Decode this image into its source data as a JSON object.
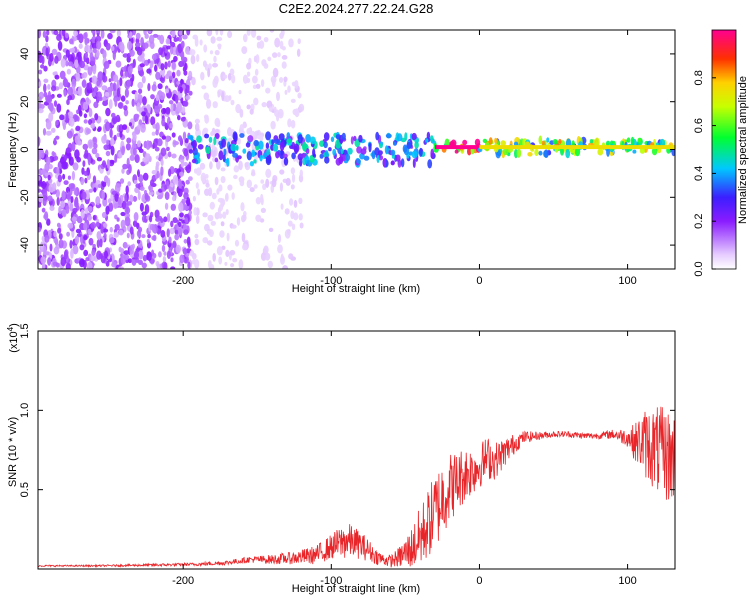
{
  "title": "C2E2.2024.277.22.24.G28",
  "colors": {
    "snr_line": "#e8262a",
    "axis": "#000000",
    "background": "#ffffff"
  },
  "chart_data": [
    {
      "type": "heatmap",
      "title": "C2E2.2024.277.22.24.G28",
      "xlabel": "Height of straight line (km)",
      "ylabel": "Frequency (Hz)",
      "xlim": [
        -298,
        132
      ],
      "ylim": [
        -50,
        50
      ],
      "x_ticks": [
        -200,
        -100,
        0,
        100
      ],
      "x_tick_labels": [
        "-200",
        "-100",
        "0",
        "100"
      ],
      "y_ticks": [
        -40,
        -20,
        0,
        20,
        40
      ],
      "y_tick_labels": [
        "-40",
        "-20",
        "0",
        "20",
        "40"
      ],
      "colorbar": {
        "label": "Normalized spectral amplitude",
        "range": [
          0,
          1
        ],
        "ticks": [
          0.0,
          0.2,
          0.4,
          0.6,
          0.8
        ],
        "tick_labels": [
          "0.0",
          "0.2",
          "0.4",
          "0.6",
          "0.8"
        ],
        "colormap": "rainbow (light violet → violet → blue → cyan → green → yellow → red)"
      },
      "features": [
        {
          "x_range": [
            -298,
            -195
          ],
          "freq_range": [
            -50,
            50
          ],
          "amplitude": 0.15,
          "description": "scattered violet noise over full band"
        },
        {
          "x_range": [
            -195,
            -120
          ],
          "freq_range": [
            -50,
            50
          ],
          "amplitude": 0.05,
          "description": "faint sparse noise"
        },
        {
          "x_range": [
            -195,
            -30
          ],
          "freq_range": [
            -6,
            6
          ],
          "amplitude": 0.35,
          "description": "broad signal band near 0 Hz"
        },
        {
          "x_range": [
            -30,
            0
          ],
          "freq_range": [
            -1,
            3
          ],
          "amplitude": 0.9,
          "description": "narrow strong line near 0 Hz"
        },
        {
          "x_range": [
            0,
            132
          ],
          "freq_range": [
            -2,
            4
          ],
          "amplitude": 0.6,
          "description": "strong narrow line at about 1 Hz"
        }
      ]
    },
    {
      "type": "line",
      "xlabel": "Height of straight line (km)",
      "ylabel": "SNR (10 * v/v)",
      "y_multiplier_label": "(x10",
      "y_multiplier_exponent": "4",
      "y_multiplier_suffix": ")",
      "xlim": [
        -298,
        132
      ],
      "ylim": [
        0,
        1.5
      ],
      "x_ticks": [
        -200,
        -100,
        0,
        100
      ],
      "x_tick_labels": [
        "-200",
        "-100",
        "0",
        "100"
      ],
      "y_ticks": [
        0.5,
        1.0,
        1.5
      ],
      "y_tick_labels": [
        "0.5",
        "1.0",
        "1.5"
      ],
      "series": [
        {
          "x": [
            -298,
            -260,
            -220,
            -190,
            -170,
            -155,
            -140,
            -125,
            -110,
            -100,
            -95,
            -90,
            -85,
            -80,
            -75,
            -70,
            -65,
            -60,
            -55,
            -50,
            -45,
            -40,
            -35,
            -30,
            -25,
            -20,
            -15,
            -10,
            -5,
            0,
            5,
            10,
            15,
            20,
            25,
            30,
            40,
            50,
            60,
            70,
            80,
            90,
            100,
            105,
            110,
            115,
            120,
            125,
            130,
            132
          ],
          "y": [
            0.02,
            0.02,
            0.025,
            0.03,
            0.04,
            0.06,
            0.06,
            0.07,
            0.09,
            0.14,
            0.16,
            0.18,
            0.17,
            0.15,
            0.12,
            0.08,
            0.06,
            0.05,
            0.07,
            0.1,
            0.14,
            0.2,
            0.28,
            0.36,
            0.45,
            0.52,
            0.55,
            0.6,
            0.62,
            0.65,
            0.7,
            0.68,
            0.72,
            0.76,
            0.8,
            0.83,
            0.84,
            0.85,
            0.85,
            0.84,
            0.84,
            0.85,
            0.83,
            0.8,
            0.8,
            0.78,
            0.75,
            0.72,
            0.7,
            0.7
          ],
          "noise": [
            0.005,
            0.005,
            0.008,
            0.01,
            0.015,
            0.02,
            0.03,
            0.04,
            0.06,
            0.08,
            0.1,
            0.12,
            0.1,
            0.09,
            0.07,
            0.05,
            0.04,
            0.04,
            0.06,
            0.1,
            0.14,
            0.2,
            0.22,
            0.25,
            0.25,
            0.22,
            0.2,
            0.18,
            0.16,
            0.14,
            0.14,
            0.12,
            0.1,
            0.08,
            0.06,
            0.04,
            0.025,
            0.02,
            0.02,
            0.02,
            0.02,
            0.03,
            0.06,
            0.12,
            0.2,
            0.25,
            0.28,
            0.3,
            0.3,
            0.3
          ]
        }
      ]
    }
  ]
}
